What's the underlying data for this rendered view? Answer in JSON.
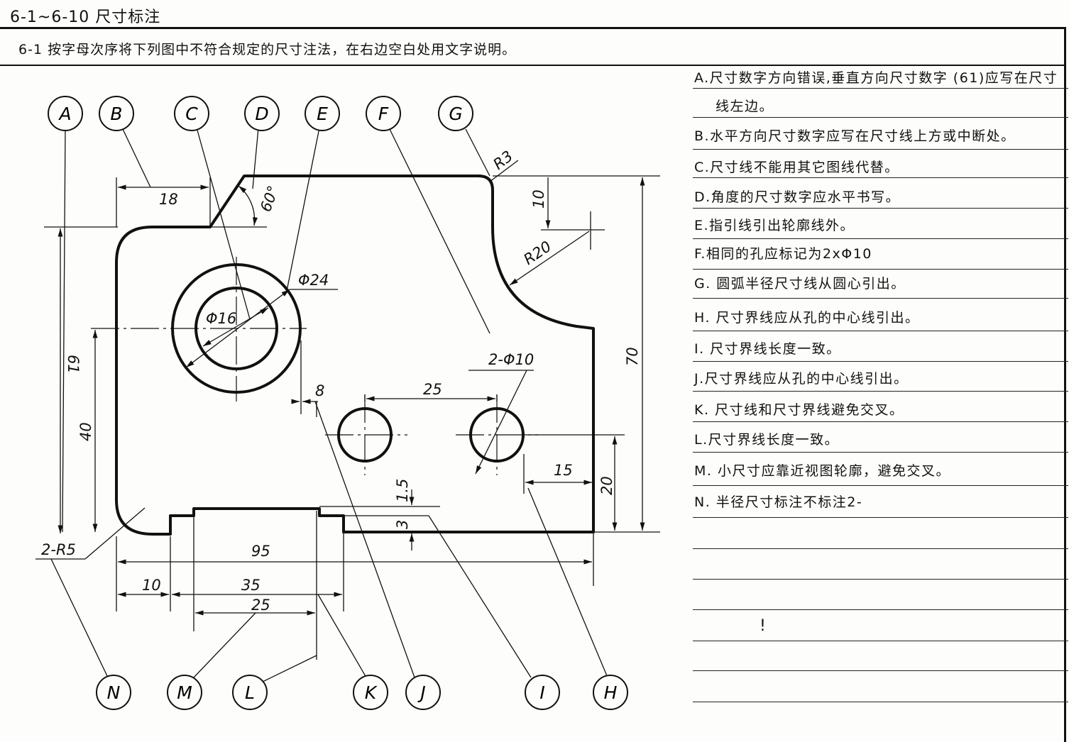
{
  "header": {
    "title": "6-1~6-10  尺寸标注"
  },
  "prompt": {
    "text": "6-1  按字母次序将下列图中不符合规定的尺寸注法，在右边空白处用文字说明。"
  },
  "drawing": {
    "callouts": [
      "A",
      "B",
      "C",
      "D",
      "E",
      "F",
      "G",
      "H",
      "I",
      "J",
      "K",
      "L",
      "M",
      "N"
    ],
    "dims": {
      "d18": "18",
      "d60": "60°",
      "dR3": "R3",
      "d10": "10",
      "dR20": "R20",
      "dphi24": "Φ24",
      "dphi16": "Φ16",
      "d61": "61",
      "d40": "40",
      "d70": "70",
      "d2phi10": "2-Φ10",
      "d25top": "25",
      "d8": "8",
      "d15": "15",
      "d20": "20",
      "d1_5": "1.5",
      "d3": "3",
      "d2R5": "2-R5",
      "d95": "95",
      "d10b": "10",
      "d35": "35",
      "d25b": "25"
    }
  },
  "notes": [
    "A.尺寸数字方向错误,垂直方向尺寸数字 (61)应写在尺寸",
    "线左边。",
    "B.水平方向尺寸数字应写在尺寸线上方或中断处。",
    "C.尺寸线不能用其它图线代替。",
    "D.角度的尺寸数字应水平书写。",
    "E.指引线引出轮廓线外。",
    "F.相同的孔应标记为2xΦ10",
    "G. 圆弧半径尺寸线从圆心引出。",
    "H. 尺寸界线应从孔的中心线引出。",
    "I. 尺寸界线长度一致。",
    "J.尺寸界线应从孔的中心线引出。",
    "K. 尺寸线和尺寸界线避免交叉。",
    "L.尺寸界线长度一致。",
    "M. 小尺寸应靠近视图轮廓，避免交叉。",
    "N. 半径尺寸标注不标注2-"
  ],
  "stray_mark": "!"
}
